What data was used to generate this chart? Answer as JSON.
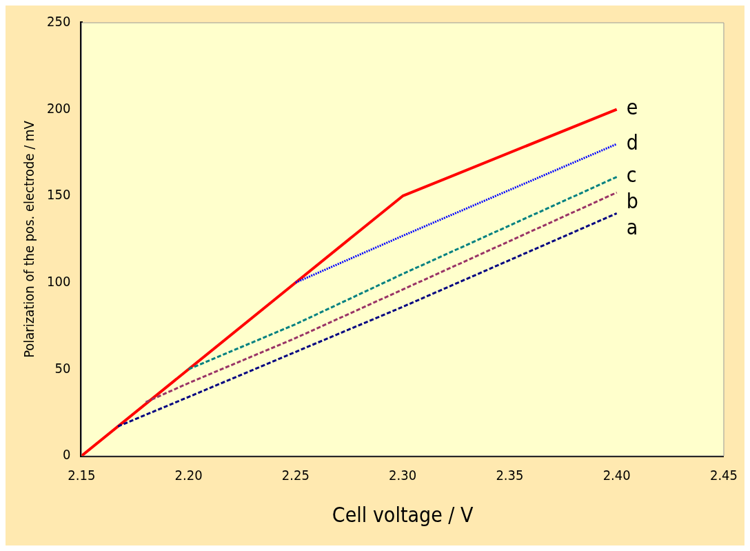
{
  "chart_data": {
    "type": "line",
    "xlabel": "Cell voltage / V",
    "ylabel": "Polarization of the pos. electrode / mV",
    "xlim": [
      2.15,
      2.45
    ],
    "xticks": [
      {
        "value": 2.15,
        "label": "2.15"
      },
      {
        "value": 2.2,
        "label": "2.20"
      },
      {
        "value": 2.25,
        "label": "2.25"
      },
      {
        "value": 2.3,
        "label": "2.30"
      },
      {
        "value": 2.35,
        "label": "2.35"
      },
      {
        "value": 2.4,
        "label": "2.40"
      },
      {
        "value": 2.45,
        "label": "2.45"
      }
    ],
    "ylim": [
      0,
      250
    ],
    "yticks": [
      0,
      50,
      100,
      150,
      200,
      250
    ],
    "grid": false,
    "legend": false,
    "marker": "none",
    "series": [
      {
        "name": "e",
        "color": "#ff0000",
        "line_style": "solid",
        "x": [
          2.15,
          2.25,
          2.3,
          2.4
        ],
        "values": [
          0,
          100,
          150,
          200
        ]
      },
      {
        "name": "d",
        "color": "#0000ff",
        "line_style": "dotted",
        "x": [
          2.25,
          2.3,
          2.4
        ],
        "values": [
          100,
          127,
          180
        ]
      },
      {
        "name": "c",
        "color": "#008080",
        "line_style": "dashed",
        "x": [
          2.2,
          2.25,
          2.3,
          2.4
        ],
        "values": [
          50,
          76,
          105,
          161
        ]
      },
      {
        "name": "b",
        "color": "#993366",
        "line_style": "dashed",
        "x": [
          2.18,
          2.2,
          2.25,
          2.3,
          2.4
        ],
        "values": [
          31,
          42,
          68,
          96,
          152
        ]
      },
      {
        "name": "a",
        "color": "#000080",
        "line_style": "dashed",
        "x": [
          2.167,
          2.2,
          2.25,
          2.3,
          2.4
        ],
        "values": [
          17,
          34,
          60,
          86,
          140
        ]
      }
    ]
  }
}
